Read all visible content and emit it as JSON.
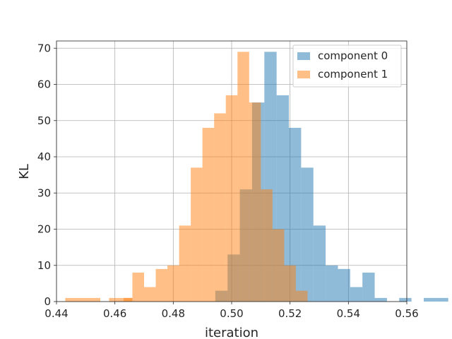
{
  "chart_data": {
    "type": "bar",
    "xlabel": "iteration",
    "ylabel": "KL",
    "xlim": [
      0.44,
      0.56
    ],
    "ylim": [
      0,
      72
    ],
    "x_ticks": [
      0.44,
      0.46,
      0.48,
      0.5,
      0.52,
      0.54,
      0.56
    ],
    "x_tick_labels": [
      "0.44",
      "0.46",
      "0.48",
      "0.50",
      "0.52",
      "0.54",
      "0.56"
    ],
    "y_ticks": [
      0,
      10,
      20,
      30,
      40,
      50,
      60,
      70
    ],
    "y_tick_labels": [
      "0",
      "10",
      "20",
      "30",
      "40",
      "50",
      "60",
      "70"
    ],
    "grid": true,
    "legend_position": "top-right",
    "series": [
      {
        "name": "component 0",
        "color": "#1f77b4",
        "opacity": 0.5,
        "bins": [
          [
            0.4944,
            0.4986,
            3
          ],
          [
            0.4986,
            0.5028,
            13
          ],
          [
            0.5028,
            0.507,
            31
          ],
          [
            0.507,
            0.5112,
            55
          ],
          [
            0.5112,
            0.5154,
            69
          ],
          [
            0.5154,
            0.5196,
            57
          ],
          [
            0.5196,
            0.5238,
            48
          ],
          [
            0.5238,
            0.528,
            37
          ],
          [
            0.528,
            0.5322,
            21
          ],
          [
            0.5322,
            0.5364,
            10
          ],
          [
            0.5364,
            0.5406,
            9
          ],
          [
            0.5406,
            0.5448,
            4
          ],
          [
            0.5448,
            0.549,
            8
          ],
          [
            0.549,
            0.5532,
            1
          ],
          [
            0.5532,
            0.5574,
            0
          ],
          [
            0.5574,
            0.5616,
            1
          ],
          [
            0.5616,
            0.5658,
            0
          ],
          [
            0.5658,
            0.57,
            1
          ],
          [
            0.57,
            0.5742,
            1
          ]
        ]
      },
      {
        "name": "component 1",
        "color": "#ff7f0e",
        "opacity": 0.5,
        "bins": [
          [
            0.443,
            0.451,
            1
          ],
          [
            0.451,
            0.455,
            1
          ],
          [
            0.458,
            0.466,
            1
          ],
          [
            0.463,
            0.466,
            1
          ],
          [
            0.466,
            0.47,
            8
          ],
          [
            0.47,
            0.474,
            4
          ],
          [
            0.474,
            0.478,
            9
          ],
          [
            0.478,
            0.482,
            10
          ],
          [
            0.482,
            0.486,
            21
          ],
          [
            0.486,
            0.49,
            37
          ],
          [
            0.49,
            0.494,
            48
          ],
          [
            0.494,
            0.498,
            52
          ],
          [
            0.498,
            0.502,
            57
          ],
          [
            0.502,
            0.506,
            69
          ],
          [
            0.506,
            0.51,
            55
          ],
          [
            0.51,
            0.514,
            31
          ],
          [
            0.514,
            0.518,
            20
          ],
          [
            0.518,
            0.522,
            10
          ],
          [
            0.522,
            0.526,
            3
          ]
        ]
      }
    ]
  }
}
